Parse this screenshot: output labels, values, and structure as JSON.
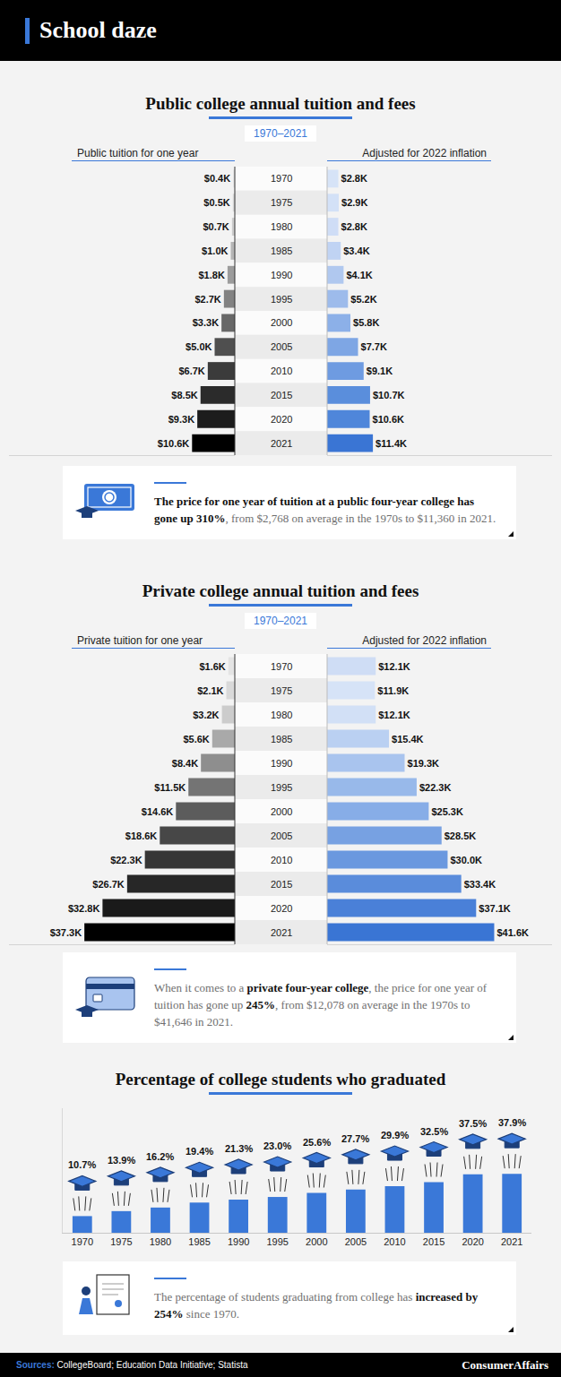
{
  "title": "School daze",
  "chart_data": [
    {
      "type": "bar",
      "orientation": "horizontal",
      "title": "Public college annual tuition and fees",
      "subtitle": "1970–2021",
      "categories": [
        "1970",
        "1975",
        "1980",
        "1985",
        "1990",
        "1995",
        "2000",
        "2005",
        "2010",
        "2015",
        "2020",
        "2021"
      ],
      "series": [
        {
          "name": "Public tuition for one year",
          "values": [
            0.4,
            0.5,
            0.7,
            1.0,
            1.8,
            2.7,
            3.3,
            5.0,
            6.7,
            8.5,
            9.3,
            10.6
          ],
          "value_labels": [
            "$0.4K",
            "$0.5K",
            "$0.7K",
            "$1.0K",
            "$1.8K",
            "$2.7K",
            "$3.3K",
            "$5.0K",
            "$6.7K",
            "$8.5K",
            "$9.3K",
            "$10.6K"
          ],
          "colors": [
            "#e4e4e4",
            "#d9d9d9",
            "#cccccc",
            "#b5b5b5",
            "#9c9c9c",
            "#828282",
            "#686868",
            "#4f4f4f",
            "#3b3b3b",
            "#2b2b2b",
            "#1c1c1c",
            "#000000"
          ]
        },
        {
          "name": "Adjusted for 2022 inflation",
          "values": [
            2.8,
            2.9,
            2.8,
            3.4,
            4.1,
            5.2,
            5.8,
            7.7,
            9.1,
            10.7,
            10.6,
            11.4
          ],
          "value_labels": [
            "$2.8K",
            "$2.9K",
            "$2.8K",
            "$3.4K",
            "$4.1K",
            "$5.2K",
            "$5.8K",
            "$7.7K",
            "$9.1K",
            "$10.7K",
            "$10.6K",
            "$11.4K"
          ],
          "colors": [
            "#d6e3f7",
            "#d3e1f7",
            "#cfddf6",
            "#c0d3f3",
            "#b0c8ef",
            "#9dbbeb",
            "#8cb0e8",
            "#7ea6e4",
            "#6e9be1",
            "#5a8edc",
            "#4f86da",
            "#3a75d4"
          ]
        }
      ],
      "xlim": [
        0,
        56
      ],
      "data_labels": true,
      "tick_labels": "y",
      "annotation": [
        {
          "text": "The price for one year of tuition at a public four-year college has gone up 310%",
          "bold": true
        },
        {
          "text": ", from $2,768 on average in the 1970s to $11,360 in 2021."
        }
      ]
    },
    {
      "type": "bar",
      "orientation": "horizontal",
      "title": "Private college annual tuition and fees",
      "subtitle": "1970–2021",
      "categories": [
        "1970",
        "1975",
        "1980",
        "1985",
        "1990",
        "1995",
        "2000",
        "2005",
        "2010",
        "2015",
        "2020",
        "2021"
      ],
      "series": [
        {
          "name": "Private tuition for one year",
          "values": [
            1.6,
            2.1,
            3.2,
            5.6,
            8.4,
            11.5,
            14.6,
            18.6,
            22.3,
            26.7,
            32.8,
            37.3
          ],
          "value_labels": [
            "$1.6K",
            "$2.1K",
            "$3.2K",
            "$5.6K",
            "$8.4K",
            "$11.5K",
            "$14.6K",
            "$18.6K",
            "$22.3K",
            "$26.7K",
            "$32.8K",
            "$37.3K"
          ],
          "colors": [
            "#e4e4e4",
            "#d9d9d9",
            "#cccccc",
            "#a9a9a9",
            "#8e8e8e",
            "#747474",
            "#5c5c5c",
            "#474747",
            "#363636",
            "#272727",
            "#1a1a1a",
            "#000000"
          ]
        },
        {
          "name": "Adjusted for 2022 inflation",
          "values": [
            12.1,
            11.9,
            12.1,
            15.4,
            19.3,
            22.3,
            25.3,
            28.5,
            30.0,
            33.4,
            37.1,
            41.6
          ],
          "value_labels": [
            "$12.1K",
            "$11.9K",
            "$12.1K",
            "$15.4K",
            "$19.3K",
            "$22.3K",
            "$25.3K",
            "$28.5K",
            "$30.0K",
            "$33.4K",
            "$37.1K",
            "$41.6K"
          ],
          "colors": [
            "#cfddf5",
            "#d6e3f7",
            "#d2e0f6",
            "#bad0f2",
            "#a9c4ee",
            "#98b9ea",
            "#87ade7",
            "#77a1e2",
            "#6a98df",
            "#5a8cdb",
            "#4a80d8",
            "#3a75d4"
          ]
        }
      ],
      "xlim": [
        0,
        56
      ],
      "data_labels": true,
      "tick_labels": "y",
      "annotation": [
        {
          "text": "When it comes to a "
        },
        {
          "text": "private four-year college",
          "bold": true
        },
        {
          "text": ", the price for one year of tuition has gone up "
        },
        {
          "text": "245%",
          "bold": true
        },
        {
          "text": ", from $12,078 on average in the 1970s to $41,646 in 2021."
        }
      ]
    },
    {
      "type": "bar",
      "title": "Percentage of college students who graduated",
      "categories": [
        "1970",
        "1975",
        "1980",
        "1985",
        "1990",
        "1995",
        "2000",
        "2005",
        "2010",
        "2015",
        "2020",
        "2021"
      ],
      "values": [
        10.7,
        13.9,
        16.2,
        19.4,
        21.3,
        23.0,
        25.6,
        27.7,
        29.9,
        32.5,
        37.5,
        37.9
      ],
      "value_labels": [
        "10.7%",
        "13.9%",
        "16.2%",
        "19.4%",
        "21.3%",
        "23.0%",
        "25.6%",
        "27.7%",
        "29.9%",
        "32.5%",
        "37.5%",
        "37.9%"
      ],
      "color": "#3a78d8",
      "ylim": [
        0,
        80
      ],
      "data_labels": true,
      "tick_labels": "x",
      "annotation": [
        {
          "text": "The percentage of students graduating from college has "
        },
        {
          "text": "increased by 254%",
          "bold": true
        },
        {
          "text": " since 1970."
        }
      ]
    }
  ],
  "sources": {
    "label": "Sources:",
    "text": "CollegeBoard; Education Data Initiative; Statista"
  },
  "brand": "ConsumerAffairs"
}
